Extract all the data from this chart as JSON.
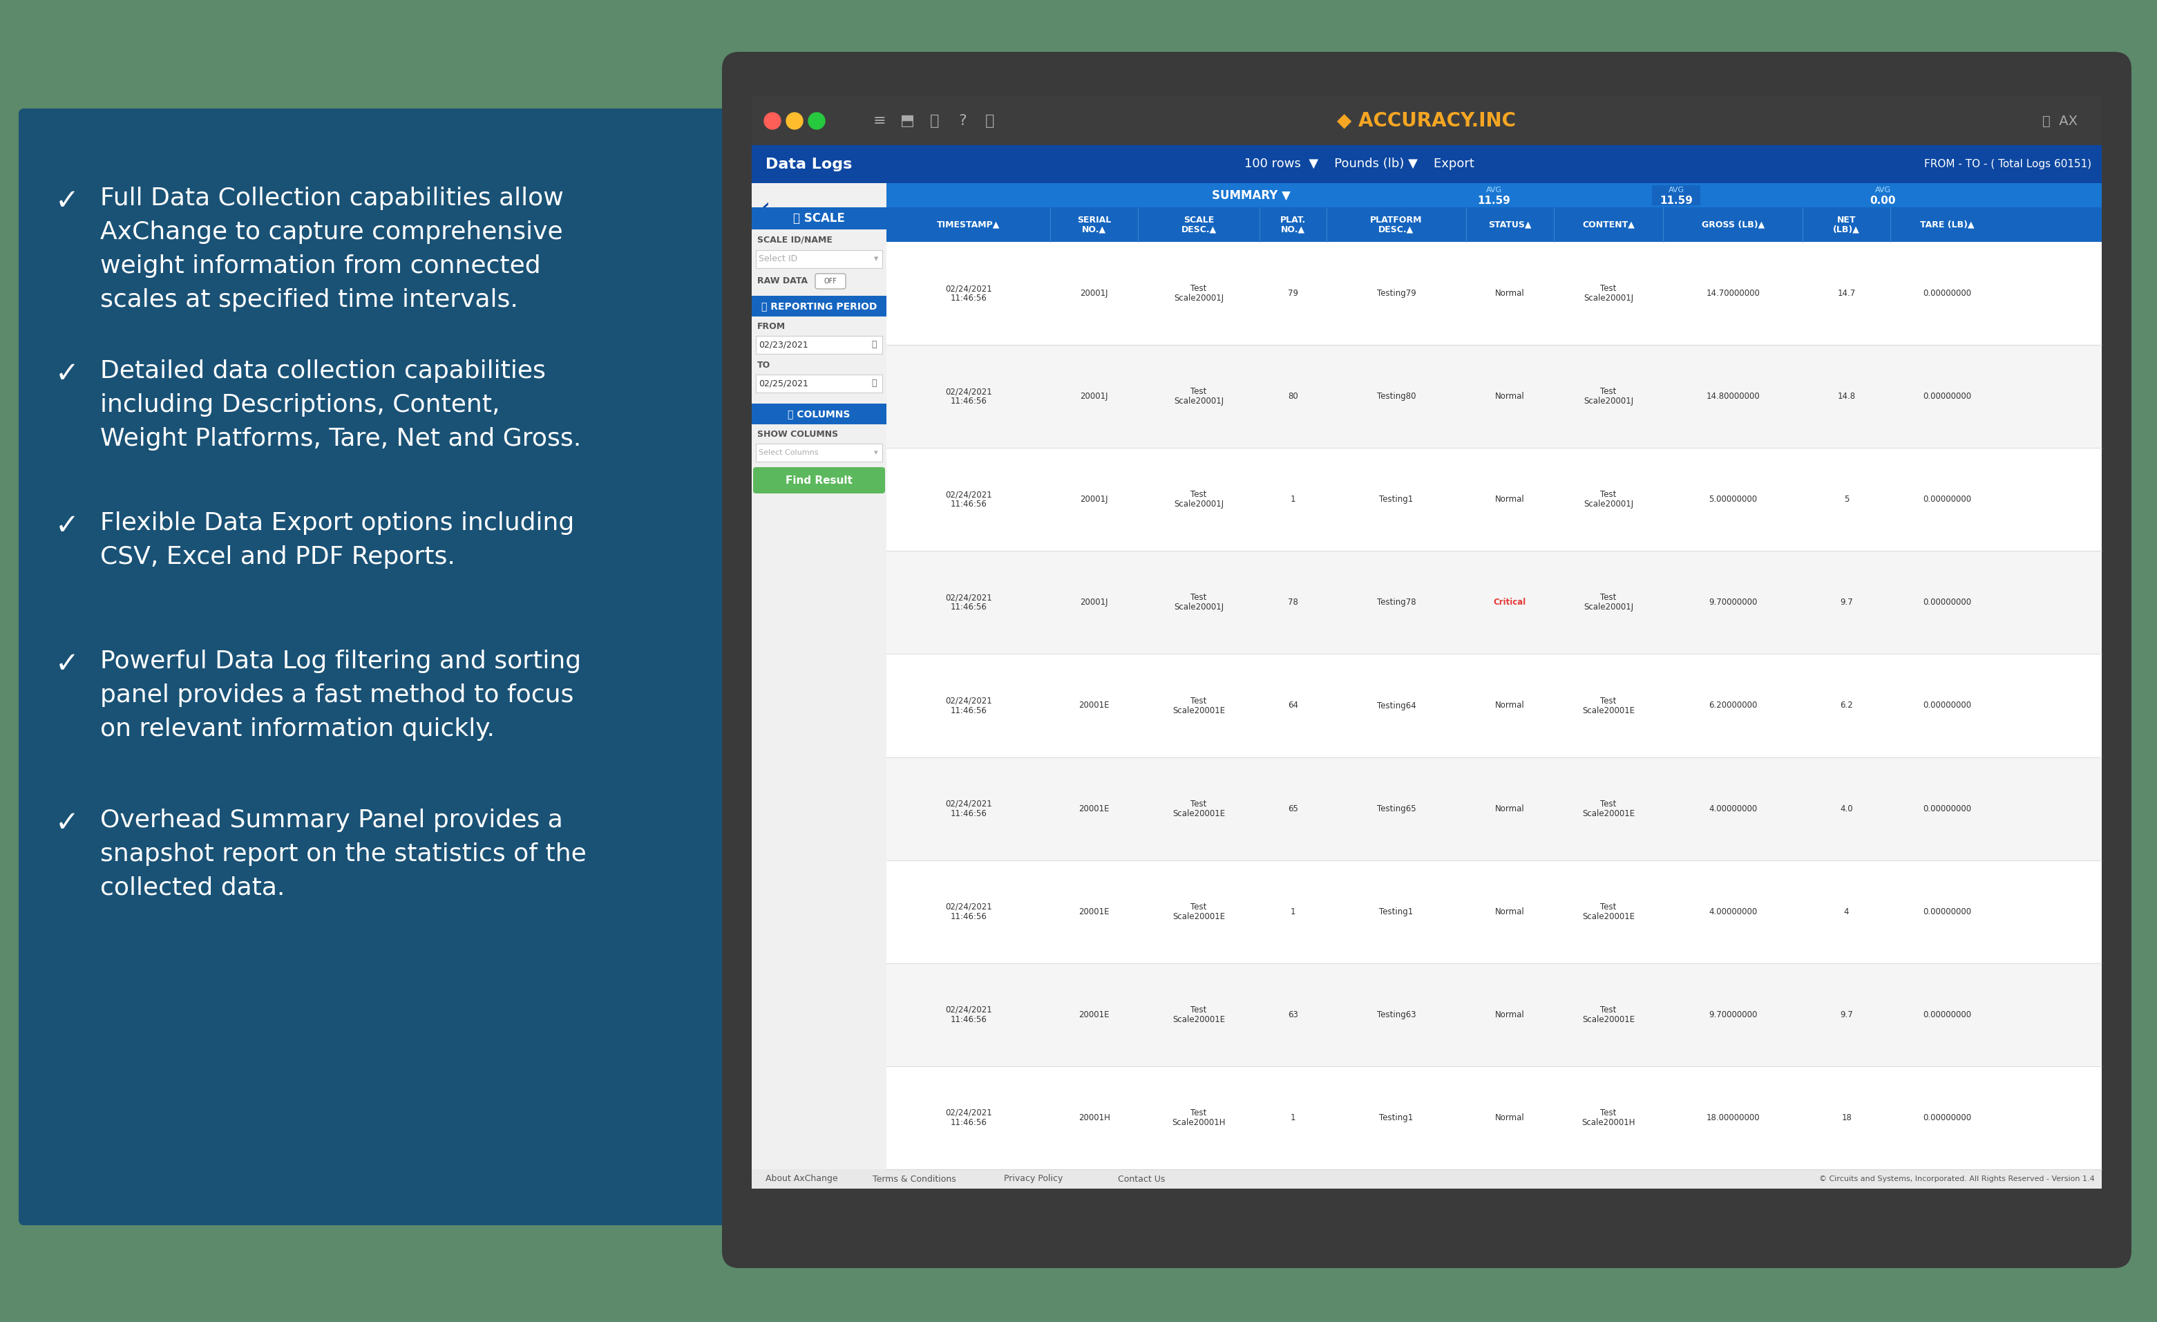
{
  "bg_color": "#5c8a6b",
  "left_panel_color": "#1a5276",
  "bullet_points": [
    "Full Data Collection capabilities allow\nAxChange to capture comprehensive\nweight information from connected\nscales at specified time intervals.",
    "Detailed data collection capabilities\nincluding Descriptions, Content,\nWeight Platforms, Tare, Net and Gross.",
    "Flexible Data Export options including\nCSV, Excel and PDF Reports.",
    "Powerful Data Log filtering and sorting\npanel provides a fast method to focus\non relevant information quickly.",
    "Overhead Summary Panel provides a\nsnapshot report on the statistics of the\ncollected data."
  ],
  "text_color": "#ffffff",
  "check_color": "#ffffff",
  "screen_bg": "#3a3a3a",
  "browser_bar_color": "#3d3d3d",
  "browser_dot_red": "#ff5f56",
  "browser_dot_yellow": "#ffbd2e",
  "browser_dot_green": "#27c93f",
  "nav_bar_color": "#0d47a1",
  "sidebar_color": "#f0f0f0",
  "table_header_color": "#1565c0",
  "critical_color": "#e53935",
  "normal_color": "#333333",
  "green_button_color": "#5cb85c",
  "summary_bar_color": "#1976d2",
  "footer_color": "#e8e8e8",
  "white": "#ffffff",
  "light_gray": "#f5f5f5",
  "mid_blue": "#1565c0",
  "dark_blue": "#0d47a1",
  "orange_gold": "#f5a623"
}
